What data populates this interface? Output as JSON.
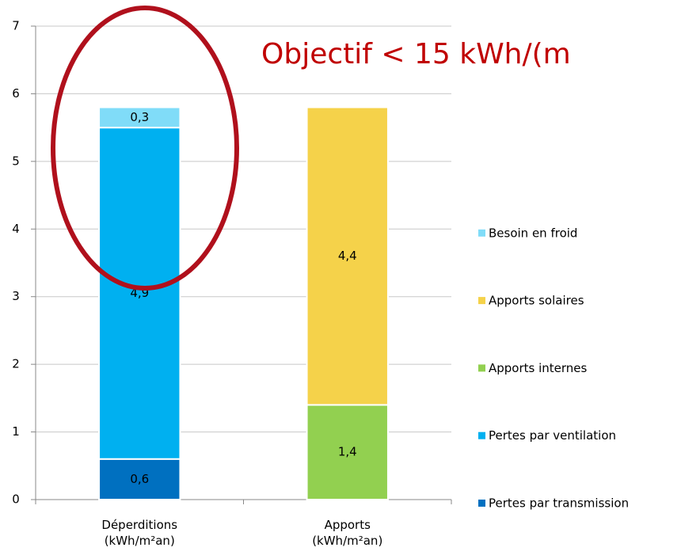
{
  "chart_data": {
    "type": "stacked_bar",
    "annotation": "Objectif < 15 kWh/(m",
    "categories": [
      "Déperditions\n(kWh/m²an)",
      "Apports\n(kWh/m²an)"
    ],
    "series": [
      {
        "name": "Pertes par transmission",
        "color": "#0070c0",
        "values": [
          0.6,
          null
        ],
        "value_labels": [
          "0,6",
          null
        ]
      },
      {
        "name": "Pertes par ventilation",
        "color": "#00b0f0",
        "values": [
          4.9,
          null
        ],
        "value_labels": [
          "4,9",
          null
        ]
      },
      {
        "name": "Apports internes",
        "color": "#92d050",
        "values": [
          null,
          1.4
        ],
        "value_labels": [
          null,
          "1,4"
        ]
      },
      {
        "name": "Apports solaires",
        "color": "#f5d24a",
        "values": [
          null,
          4.4
        ],
        "value_labels": [
          null,
          "4,4"
        ]
      },
      {
        "name": "Besoin en froid",
        "color": "#80dcf8",
        "values": [
          0.3,
          null
        ],
        "value_labels": [
          "0,3",
          null
        ]
      }
    ],
    "ylim": [
      0,
      7
    ],
    "yticks": [
      0,
      1,
      2,
      3,
      4,
      5,
      6,
      7
    ],
    "grid": true,
    "legend": "right"
  }
}
